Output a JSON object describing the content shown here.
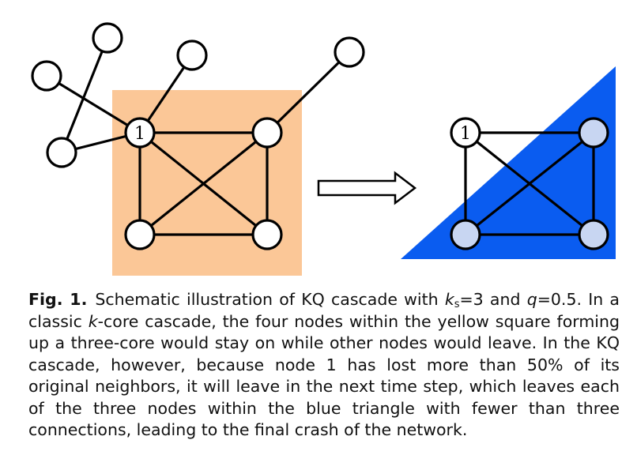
{
  "figure": {
    "left_graph": {
      "highlight_color": "#fbc797",
      "node_fill": "#ffffff",
      "labeled_node": "1"
    },
    "right_graph": {
      "highlight_color": "#0a5cf0",
      "node_fill": "#c8d6f2",
      "labeled_node": "1"
    },
    "arrow_direction": "right"
  },
  "caption": {
    "label": "Fig. 1.",
    "part1": "Schematic illustration of KQ cascade with ",
    "ks_var": "k",
    "ks_sub": "s",
    "ks_value": "=3 and ",
    "q_var": "q",
    "q_value": "=0.5. In a classic ",
    "k_var": "k",
    "part2": "-core cascade, the four nodes within the yellow square forming up a three-core would stay on while other nodes would leave. In the KQ cascade, however, because node 1 has lost more than 50% of its original neighbors, it will leave in the next time step, which leaves each of the three nodes within the blue triangle with fewer than three connections, leading to the final crash of the network."
  }
}
